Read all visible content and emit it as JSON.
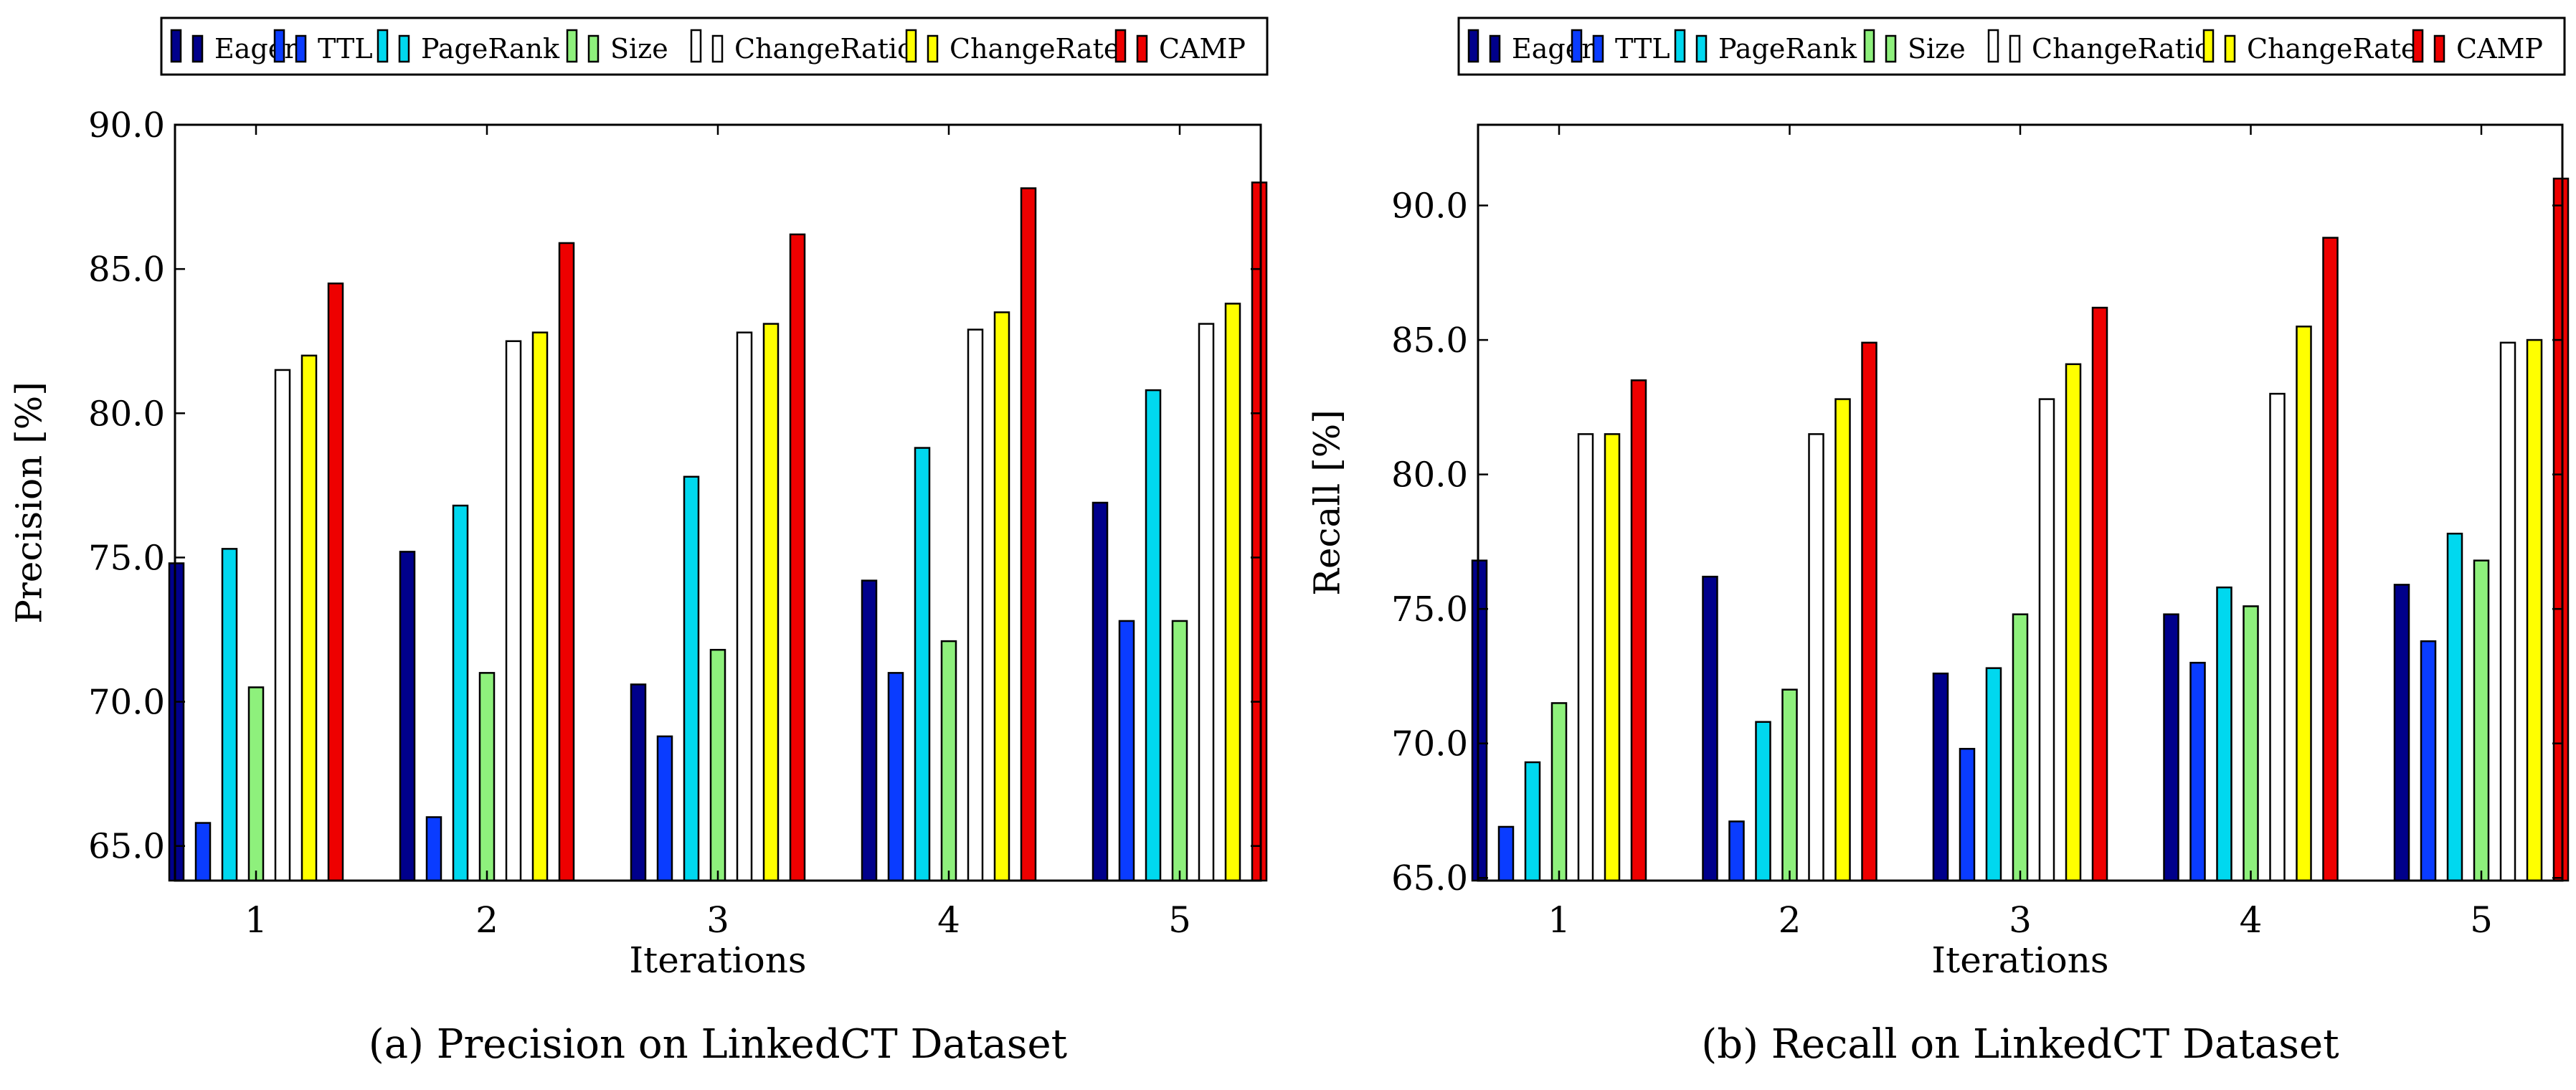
{
  "chart_data": [
    {
      "type": "bar",
      "caption": "(a)  Precision on LinkedCT Dataset",
      "xlabel": "Iterations",
      "ylabel": "Precision [%]",
      "categories": [
        "1",
        "2",
        "3",
        "4",
        "5"
      ],
      "ylim": [
        63.8,
        90.0
      ],
      "yticks": [
        "65.0",
        "70.0",
        "75.0",
        "80.0",
        "85.0",
        "90.0"
      ],
      "legend_position": "top",
      "series": [
        {
          "name": "Eager",
          "color": "#00008b",
          "values": [
            74.8,
            75.2,
            70.6,
            74.2,
            76.9
          ]
        },
        {
          "name": "TTL",
          "color": "#0a3cff",
          "values": [
            65.8,
            66.0,
            68.8,
            71.0,
            72.8
          ]
        },
        {
          "name": "PageRank",
          "color": "#00d8ef",
          "values": [
            75.3,
            76.8,
            77.8,
            78.8,
            80.8
          ]
        },
        {
          "name": "Size",
          "color": "#8ef07c",
          "values": [
            70.5,
            71.0,
            71.8,
            72.1,
            72.8
          ]
        },
        {
          "name": "ChangeRatio",
          "color": "#ffffff",
          "values": [
            81.5,
            82.5,
            82.8,
            82.9,
            83.1
          ]
        },
        {
          "name": "ChangeRate",
          "color": "#ffff00",
          "values": [
            82.0,
            82.8,
            83.1,
            83.5,
            83.8
          ]
        },
        {
          "name": "CAMP",
          "color": "#ee0000",
          "values": [
            84.5,
            85.9,
            86.2,
            87.8,
            88.0
          ]
        }
      ]
    },
    {
      "type": "bar",
      "caption": "(b)  Recall on LinkedCT Dataset",
      "xlabel": "Iterations",
      "ylabel": "Recall [%]",
      "categories": [
        "1",
        "2",
        "3",
        "4",
        "5"
      ],
      "ylim": [
        64.9,
        93.0
      ],
      "yticks": [
        "65.0",
        "70.0",
        "75.0",
        "80.0",
        "85.0",
        "90.0"
      ],
      "legend_position": "top",
      "series": [
        {
          "name": "Eager",
          "color": "#00008b",
          "values": [
            76.8,
            76.2,
            72.6,
            74.8,
            75.9
          ]
        },
        {
          "name": "TTL",
          "color": "#0a3cff",
          "values": [
            66.9,
            67.1,
            69.8,
            73.0,
            73.8
          ]
        },
        {
          "name": "PageRank",
          "color": "#00d8ef",
          "values": [
            69.3,
            70.8,
            72.8,
            75.8,
            77.8
          ]
        },
        {
          "name": "Size",
          "color": "#8ef07c",
          "values": [
            71.5,
            72.0,
            74.8,
            75.1,
            76.8
          ]
        },
        {
          "name": "ChangeRatio",
          "color": "#ffffff",
          "values": [
            81.5,
            81.5,
            82.8,
            83.0,
            84.9
          ]
        },
        {
          "name": "ChangeRate",
          "color": "#ffff00",
          "values": [
            81.5,
            82.8,
            84.1,
            85.5,
            85.0
          ]
        },
        {
          "name": "CAMP",
          "color": "#ee0000",
          "values": [
            83.5,
            84.9,
            86.2,
            88.8,
            91.0
          ]
        }
      ]
    }
  ]
}
